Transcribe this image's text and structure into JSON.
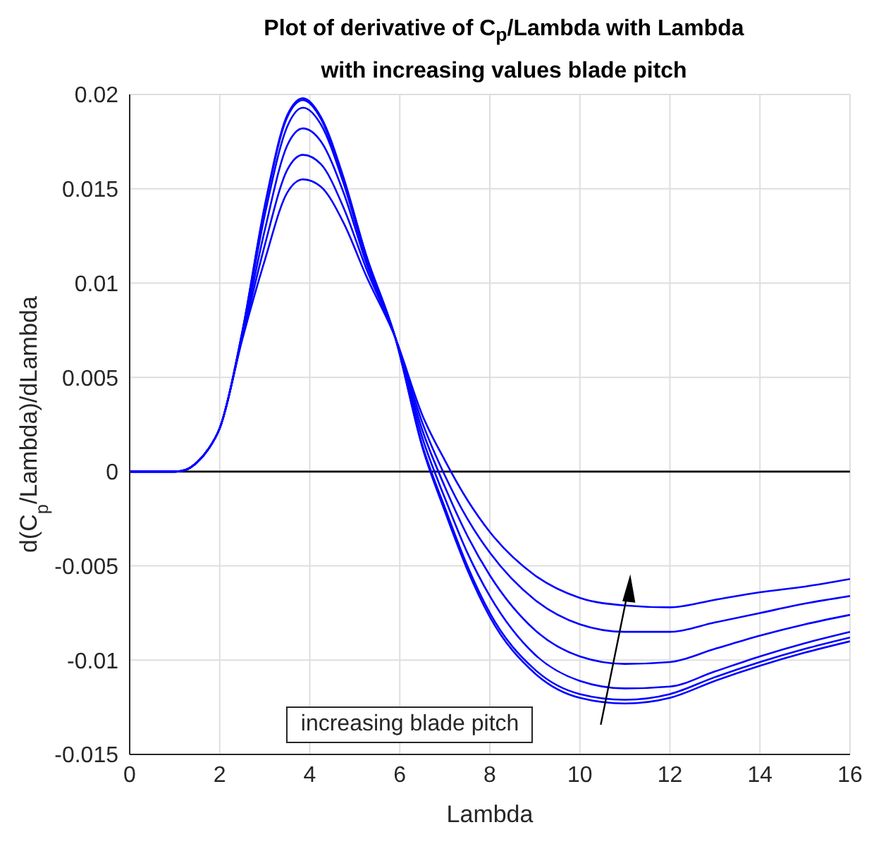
{
  "chart_data": {
    "type": "line",
    "title": "Plot of derivative of C$_{p}$/Lambda with Lambda",
    "subtitle": "with increasing values blade pitch",
    "xlabel": "Lambda",
    "ylabel": "d(C$_{p}$/Lambda)/dLambda",
    "x": [
      0,
      1,
      1.25,
      1.5,
      1.75,
      2,
      2.5,
      3,
      3.5,
      3.85,
      4.25,
      4.75,
      5.25,
      5.9,
      6.5,
      7,
      7.5,
      8,
      9,
      10,
      11,
      12,
      13,
      14,
      15,
      16
    ],
    "series": [
      {
        "color": "#0000ff",
        "values": [
          0,
          0,
          0.0001,
          0.0005,
          0.0012,
          0.0023,
          0.0074,
          0.0141,
          0.0189,
          0.0198,
          0.0188,
          0.0156,
          0.0115,
          0.0071,
          0.0013,
          -0.0021,
          -0.0052,
          -0.0077,
          -0.0107,
          -0.012,
          -0.0123,
          -0.012,
          -0.0111,
          -0.0103,
          -0.0096,
          -0.009
        ]
      },
      {
        "color": "#0000ff",
        "values": [
          0,
          0,
          0.0001,
          0.0005,
          0.0012,
          0.0023,
          0.0074,
          0.014,
          0.0188,
          0.0197,
          0.0187,
          0.0155,
          0.0115,
          0.0071,
          0.0014,
          -0.0019,
          -0.005,
          -0.0075,
          -0.0105,
          -0.0118,
          -0.0121,
          -0.0118,
          -0.0109,
          -0.0101,
          -0.0094,
          -0.0088
        ]
      },
      {
        "color": "#0000ff",
        "values": [
          0,
          0,
          0.0001,
          0.0005,
          0.0012,
          0.0023,
          0.0073,
          0.0136,
          0.0183,
          0.0193,
          0.0184,
          0.0153,
          0.0113,
          0.0071,
          0.0018,
          -0.0014,
          -0.0043,
          -0.0066,
          -0.0097,
          -0.0111,
          -0.0115,
          -0.0114,
          -0.0106,
          -0.0098,
          -0.0091,
          -0.0085
        ]
      },
      {
        "color": "#0000ff",
        "values": [
          0,
          0,
          0.0001,
          0.0005,
          0.0012,
          0.0023,
          0.0072,
          0.0128,
          0.0173,
          0.0182,
          0.0175,
          0.0148,
          0.0111,
          0.0071,
          0.0022,
          -0.0008,
          -0.0034,
          -0.0055,
          -0.0084,
          -0.0098,
          -0.0102,
          -0.0101,
          -0.0094,
          -0.0087,
          -0.0081,
          -0.0076
        ]
      },
      {
        "color": "#0000ff",
        "values": [
          0,
          0,
          0.0001,
          0.0005,
          0.0012,
          0.0023,
          0.0071,
          0.012,
          0.016,
          0.0168,
          0.0163,
          0.014,
          0.0108,
          0.0071,
          0.0026,
          -0.0002,
          -0.0025,
          -0.0043,
          -0.0068,
          -0.0081,
          -0.0085,
          -0.0085,
          -0.008,
          -0.0075,
          -0.007,
          -0.0066
        ]
      },
      {
        "color": "#0000ff",
        "values": [
          0,
          0,
          0.0001,
          0.0005,
          0.0012,
          0.0023,
          0.007,
          0.0112,
          0.0148,
          0.0155,
          0.0151,
          0.0132,
          0.0104,
          0.0071,
          0.003,
          0.0006,
          -0.0015,
          -0.0032,
          -0.0055,
          -0.0067,
          -0.0071,
          -0.0072,
          -0.0068,
          -0.0064,
          -0.0061,
          -0.0057
        ]
      }
    ],
    "xlim": [
      0,
      16
    ],
    "xticks": [
      0,
      2,
      4,
      6,
      8,
      10,
      12,
      14,
      16
    ],
    "ylim": [
      -0.015,
      0.02
    ],
    "yticks": [
      -0.015,
      -0.01,
      -0.005,
      0,
      0.005,
      0.01,
      0.015,
      0.02
    ],
    "ref_lines": [
      {
        "axis": "y",
        "value": 0,
        "color": "#000000"
      }
    ],
    "annotations": [
      "increasing blade pitch"
    ],
    "grid": true,
    "marker": "none",
    "line_style": "solid"
  }
}
